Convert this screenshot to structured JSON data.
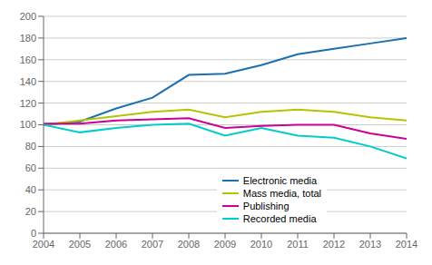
{
  "chart_data": {
    "type": "line",
    "x": [
      2004,
      2005,
      2006,
      2007,
      2008,
      2009,
      2010,
      2011,
      2012,
      2013,
      2014
    ],
    "series": [
      {
        "name": "Electronic media",
        "color": "#1a6faf",
        "values": [
          100,
          103,
          115,
          125,
          146,
          147,
          155,
          165,
          170,
          175,
          180
        ]
      },
      {
        "name": "Mass media, total",
        "color": "#b5c400",
        "values": [
          100,
          104,
          108,
          112,
          114,
          107,
          112,
          114,
          112,
          107,
          104
        ]
      },
      {
        "name": "Publishing",
        "color": "#cc0099",
        "values": [
          101,
          101,
          104,
          105,
          106,
          97,
          99,
          100,
          100,
          92,
          87
        ]
      },
      {
        "name": "Recorded media",
        "color": "#00cccc",
        "values": [
          100,
          93,
          97,
          100,
          101,
          90,
          97,
          90,
          88,
          80,
          69
        ]
      }
    ],
    "xlim": [
      2004,
      2014
    ],
    "xticks": [
      2004,
      2005,
      2006,
      2007,
      2008,
      2009,
      2010,
      2011,
      2012,
      2013,
      2014
    ],
    "ylim": [
      0,
      200
    ],
    "yticks": [
      0,
      20,
      40,
      60,
      80,
      100,
      120,
      140,
      160,
      180,
      200
    ],
    "grid": "y",
    "legend": "lower right"
  }
}
